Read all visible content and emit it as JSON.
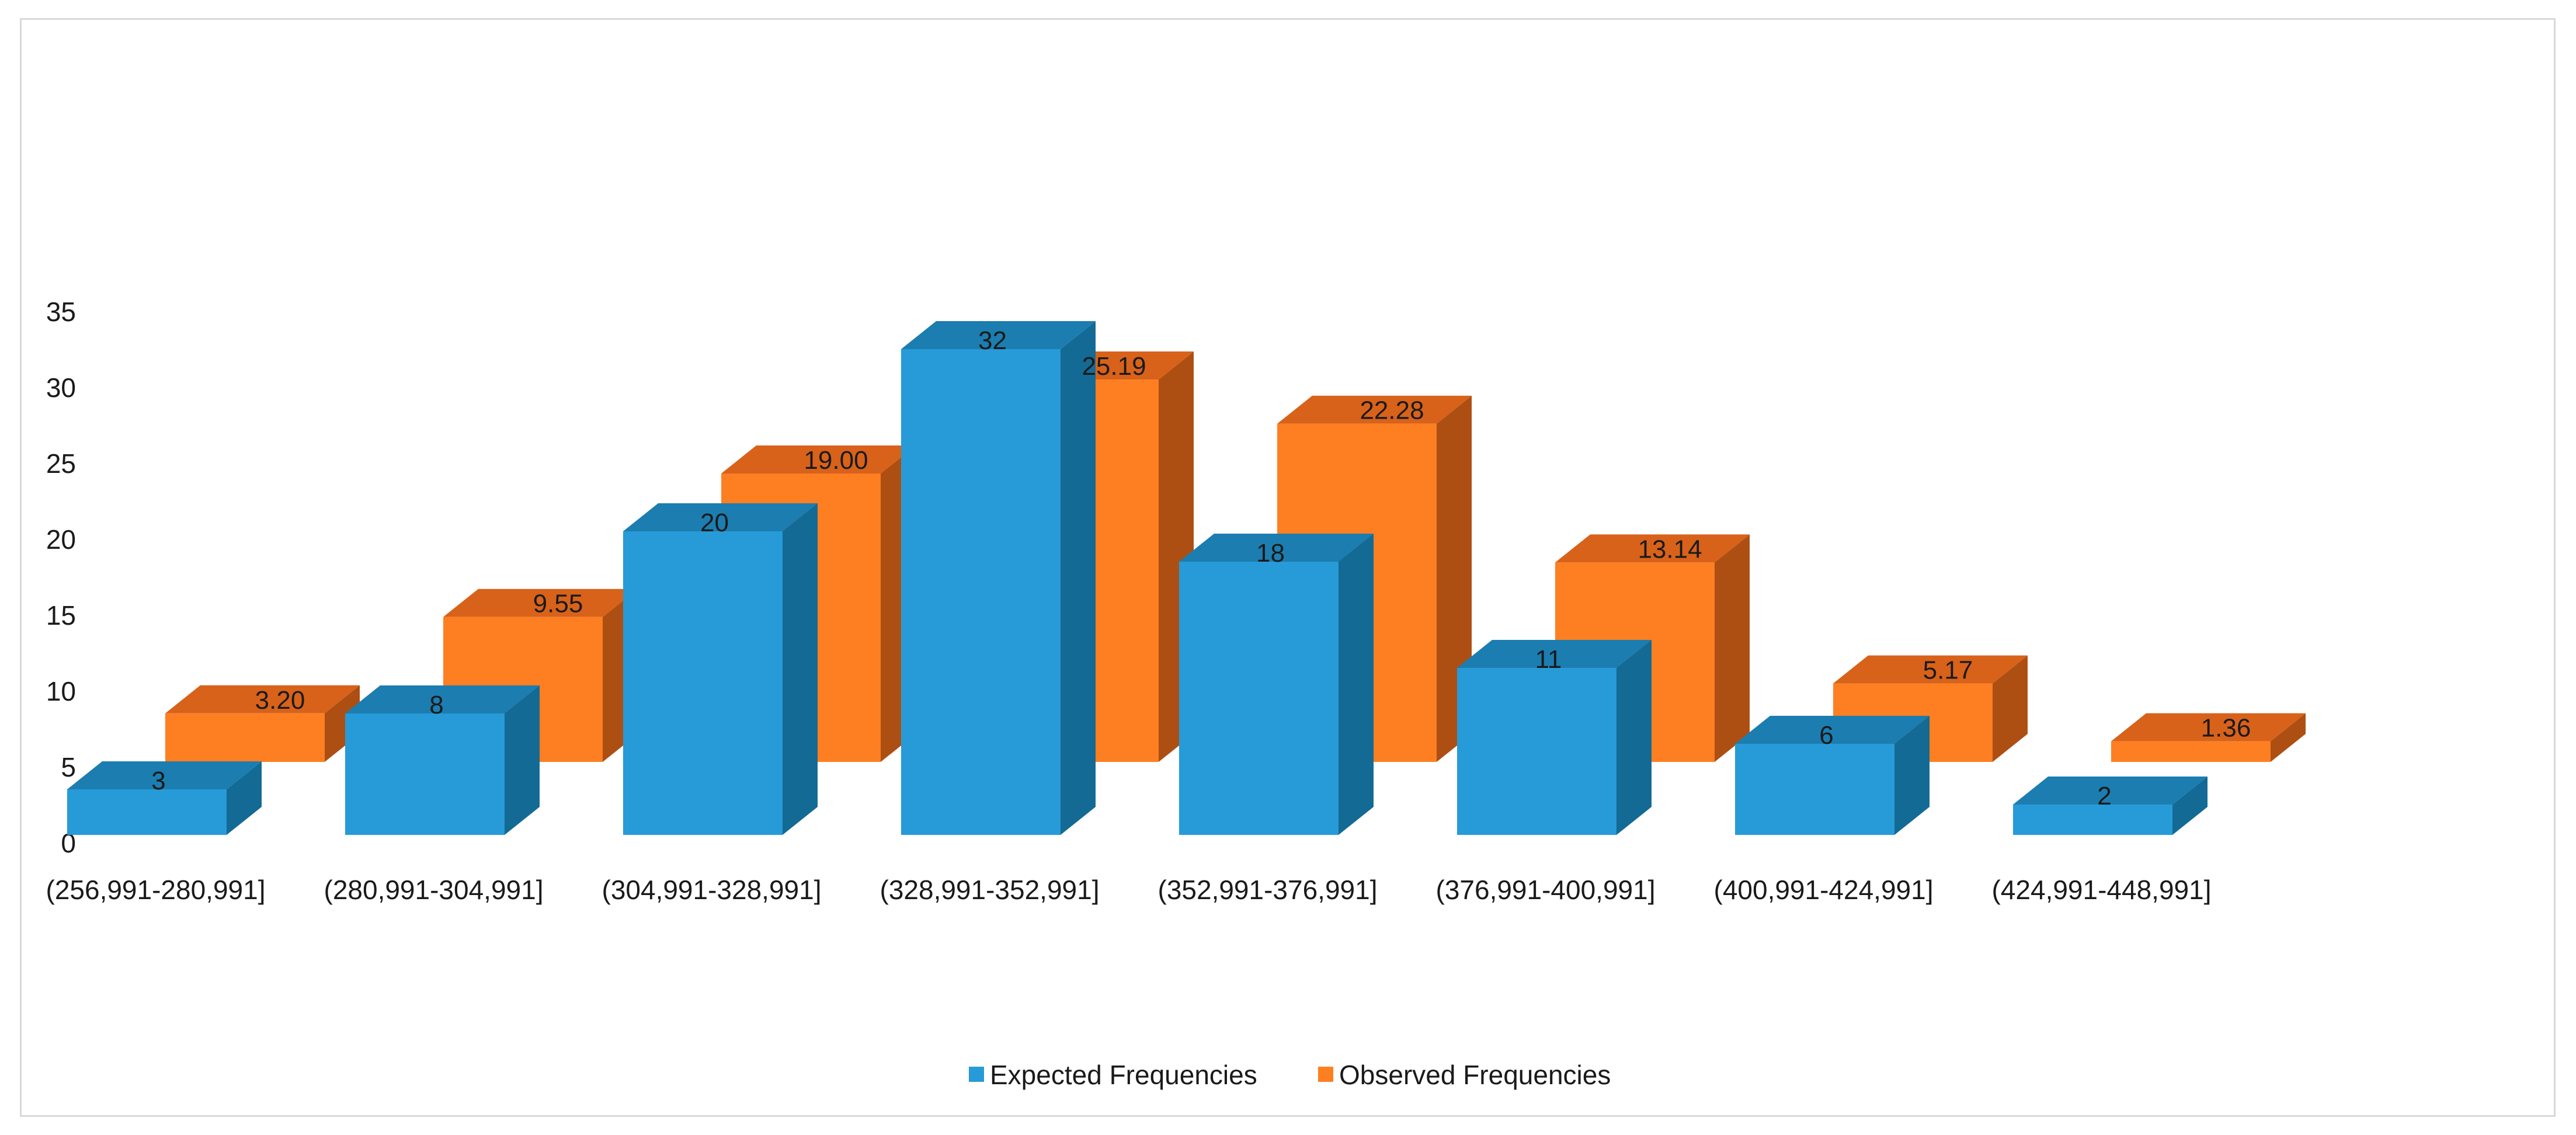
{
  "chart_data": {
    "type": "bar",
    "style": "3d-clustered-column",
    "title": "",
    "xlabel": "",
    "ylabel": "",
    "ylim": [
      0,
      35
    ],
    "yticks": [
      0,
      5,
      10,
      15,
      20,
      25,
      30,
      35
    ],
    "grid": false,
    "legend_position": "bottom",
    "categories": [
      "(256,991-280,991]",
      "(280,991-304,991]",
      "(304,991-328,991]",
      "(328,991-352,991]",
      "(352,991-376,991]",
      "(376,991-400,991]",
      "(400,991-424,991]",
      "(424,991-448,991]"
    ],
    "series": [
      {
        "name": "Expected Frequencies",
        "values": [
          3,
          8,
          20,
          32,
          18,
          11,
          6,
          2
        ],
        "labels": [
          "3",
          "8",
          "20",
          "32",
          "18",
          "11",
          "6",
          "2"
        ],
        "color": "#269bd8",
        "top_color": "#1c7db0",
        "side_color": "#136a94"
      },
      {
        "name": "Observed Frequencies",
        "values": [
          3.2,
          9.55,
          19.0,
          25.19,
          22.28,
          13.14,
          5.17,
          1.36
        ],
        "labels": [
          "3.20",
          "9.55",
          "19.00",
          "25.19",
          "22.28",
          "13.14",
          "5.17",
          "1.36"
        ],
        "color": "#fe7f22",
        "top_color": "#d8621a",
        "side_color": "#ad4f13"
      }
    ]
  }
}
